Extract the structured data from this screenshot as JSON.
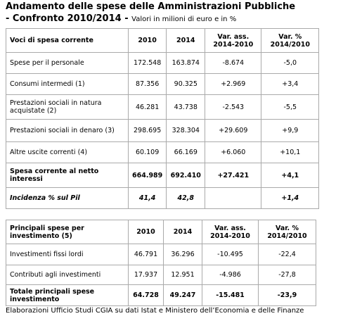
{
  "header": {
    "title": "Andamento delle spese delle Amministrazioni Pubbliche",
    "subtitle": "- Confronto 2010/2014 -",
    "note": "Valori in milioni di euro e in %"
  },
  "table1": {
    "header": [
      "Voci di spesa corrente",
      "2010",
      "2014",
      "Var. ass. 2014-2010",
      "Var. % 2014/2010"
    ],
    "rows": [
      [
        "Spese per il personale",
        "172.548",
        "163.874",
        "-8.674",
        "-5,0"
      ],
      [
        "Consumi intermedi (1)",
        "87.356",
        "90.325",
        "+2.969",
        "+3,4"
      ],
      [
        "Prestazioni sociali in natura acquistate (2)",
        "46.281",
        "43.738",
        "-2.543",
        "-5,5"
      ],
      [
        "Prestazioni sociali in denaro (3)",
        "298.695",
        "328.304",
        "+29.609",
        "+9,9"
      ],
      [
        "Altre uscite correnti (4)",
        "60.109",
        "66.169",
        "+6.060",
        "+10,1"
      ],
      [
        "Spesa corrente al netto interessi",
        "664.989",
        "692.410",
        "+27.421",
        "+4,1"
      ],
      [
        "Incidenza % sul  Pil",
        "41,4",
        "42,8",
        "",
        "+1,4"
      ]
    ]
  },
  "table2": {
    "header": [
      "Principali spese per investimento (5)",
      "2010",
      "2014",
      "Var. ass. 2014-2010",
      "Var. % 2014/2010"
    ],
    "rows": [
      [
        "Investimenti fissi lordi",
        "46.791",
        "36.296",
        "-10.495",
        "-22,4"
      ],
      [
        "Contributi agli investimenti",
        "17.937",
        "12.951",
        "-4.986",
        "-27,8"
      ],
      [
        "Totale principali spese investimento",
        "64.728",
        "49.247",
        "-15.481",
        "-23,9"
      ]
    ]
  },
  "footer": "Elaborazioni Ufficio Studi CGIA su dati Istat e Ministero dell’Economia e delle Finanze"
}
